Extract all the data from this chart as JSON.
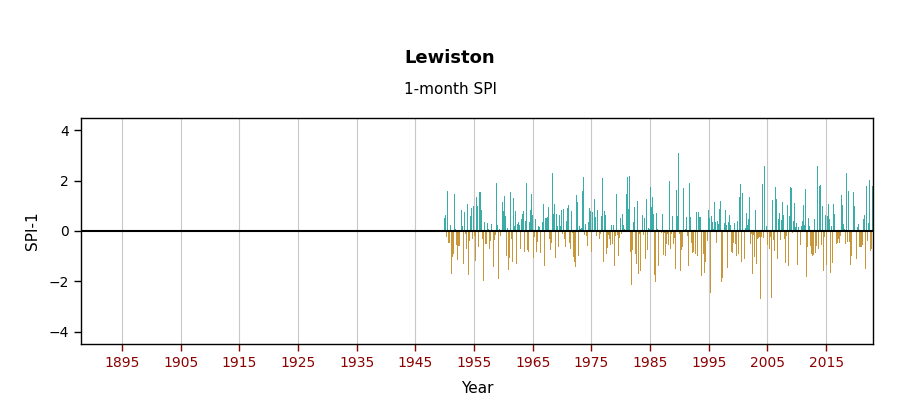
{
  "title": "Lewiston",
  "subtitle": "1-month SPI",
  "xlabel": "Year",
  "ylabel": "SPI-1",
  "xlim": [
    1888,
    2023
  ],
  "ylim": [
    -4.5,
    4.5
  ],
  "yticks": [
    -4,
    -2,
    0,
    2,
    4
  ],
  "xticks": [
    1895,
    1905,
    1915,
    1925,
    1935,
    1945,
    1955,
    1965,
    1975,
    1985,
    1995,
    2005,
    2015
  ],
  "data_start_year": 1950,
  "data_end_year": 2022,
  "color_positive": "#3aada8",
  "color_negative": "#c8973a",
  "color_zero_line": "#000000",
  "grid_color": "#c8c8c8",
  "background_color": "#ffffff",
  "title_fontsize": 13,
  "subtitle_fontsize": 11,
  "label_fontsize": 11,
  "tick_fontsize": 10,
  "tick_color": "#8B0000",
  "seed": 42,
  "n_months": 876,
  "spine_color": "#000000"
}
